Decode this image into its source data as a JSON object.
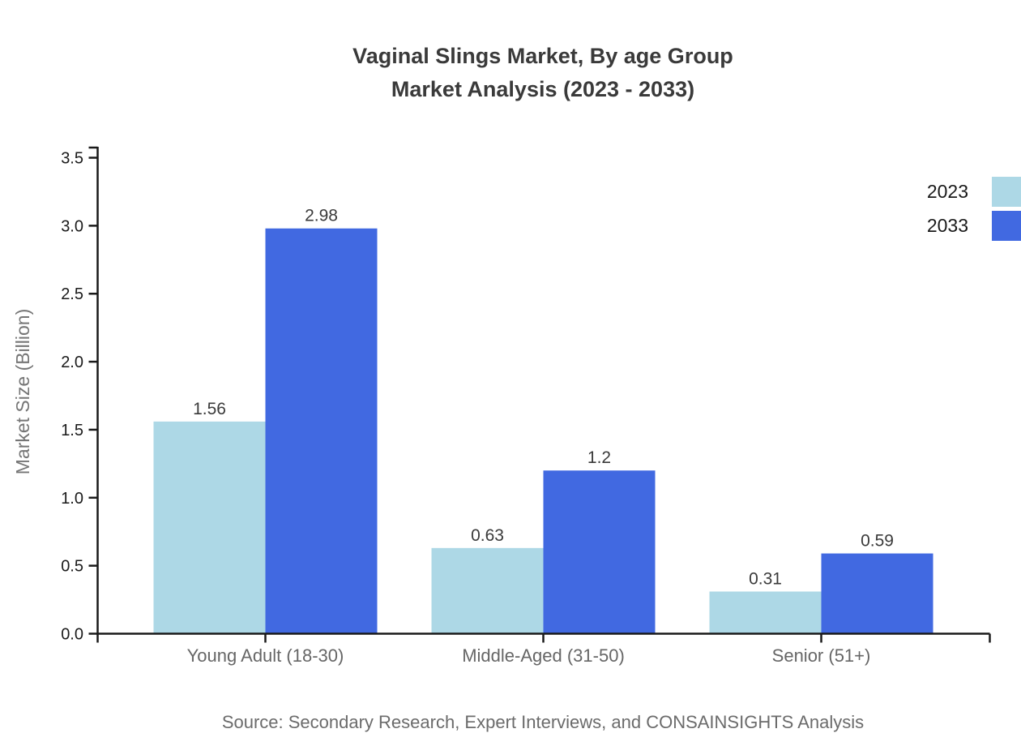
{
  "chart_data": {
    "type": "bar",
    "title": "Vaginal Slings Market, By age Group",
    "subtitle": "Market Analysis (2023 - 2033)",
    "categories": [
      "Young Adult (18-30)",
      "Middle-Aged (31-50)",
      "Senior (51+)"
    ],
    "series": [
      {
        "name": "2023",
        "color": "#ADD8E6",
        "values": [
          1.56,
          0.63,
          0.31
        ]
      },
      {
        "name": "2033",
        "color": "#4169E1",
        "values": [
          2.98,
          1.2,
          0.59
        ]
      }
    ],
    "xlabel": "",
    "ylabel": "Market Size (Billion)",
    "ylim": [
      0,
      3.5
    ],
    "ytick_labels": [
      "0.0",
      "0.5",
      "1.0",
      "1.5",
      "2.0",
      "2.5",
      "3.0",
      "3.5"
    ],
    "grid": false,
    "legend_position": "top-right",
    "value_labels_shown": true
  },
  "source": {
    "text": "Source: Secondary Research, Expert Interviews, and CONSAINSIGHTS Analysis"
  },
  "colors": {
    "series_2023": "#ADD8E6",
    "series_2033": "#4169E1",
    "axis": "#1a1a1a",
    "title_text": "#3a3a3a",
    "category_text": "#666666",
    "axis_title_text": "#757575",
    "value_label_text": "#3a3a3a",
    "source_text": "#6b6b6b"
  }
}
